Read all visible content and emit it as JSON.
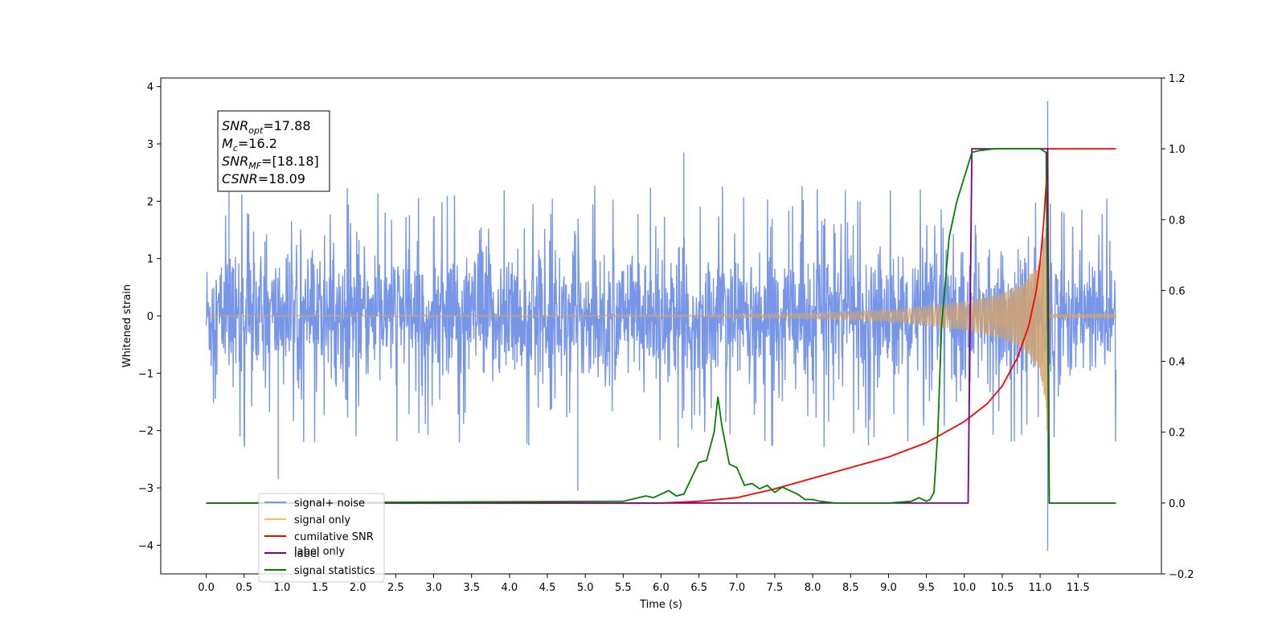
{
  "chart_data": {
    "type": "line",
    "xlabel": "Time (s)",
    "ylabel": "Whitened strain",
    "xlim": [
      -0.6,
      12.6
    ],
    "ylim": [
      -4.5,
      4.15
    ],
    "y2lim": [
      -0.2,
      1.2
    ],
    "x_ticks": [
      "0.0",
      "0.5",
      "1.0",
      "1.5",
      "2.0",
      "2.5",
      "3.0",
      "3.5",
      "4.0",
      "4.5",
      "5.0",
      "5.5",
      "6.0",
      "6.5",
      "7.0",
      "7.5",
      "8.0",
      "8.5",
      "9.0",
      "9.5",
      "10.0",
      "10.5",
      "11.0",
      "11.5"
    ],
    "y_ticks": [
      "−4",
      "−3",
      "−2",
      "−1",
      "0",
      "1",
      "2",
      "3",
      "4"
    ],
    "y2_ticks": [
      "−0.2",
      "0.0",
      "0.2",
      "0.4",
      "0.6",
      "0.8",
      "1.0",
      "1.2"
    ],
    "annotation": {
      "lines": [
        {
          "sym": "SNR",
          "sub": "opt",
          "value": "=17.88"
        },
        {
          "sym": "M",
          "sub": "c",
          "value": "=16.2"
        },
        {
          "sym": "SNR",
          "sub": "MF",
          "value": "=[18.18]"
        },
        {
          "sym": "CSNR",
          "sub": "",
          "value": "=18.09"
        }
      ]
    },
    "legend": {
      "position": "lower-left",
      "entries": [
        {
          "label": "signal+ noise",
          "color": "#7896e8"
        },
        {
          "label": "signal only",
          "color": "#ffc04d"
        },
        {
          "label": "cumilative SNR",
          "color": "#ff0000"
        },
        {
          "label": "label",
          "color": "#800080"
        },
        {
          "label": "signal statistics",
          "color": "#008000"
        }
      ],
      "hidden_behind": [
        "signal only",
        "label only"
      ]
    },
    "series": [
      {
        "name": "signal+ noise",
        "axis": "left",
        "color": "#7896e8",
        "x_range": [
          0.0,
          12.0
        ],
        "noise_envelope": [
          [
            0.0,
            1.5
          ],
          [
            11.1,
            1.5
          ],
          [
            11.11,
            3.75
          ],
          [
            11.12,
            1.5
          ],
          [
            12.0,
            1.5
          ]
        ],
        "notable_extrema": [
          [
            0.3,
            2.35
          ],
          [
            0.95,
            -2.85
          ],
          [
            6.3,
            2.85
          ],
          [
            4.9,
            -3.05
          ],
          [
            11.1,
            3.75
          ],
          [
            11.1,
            -4.1
          ]
        ]
      },
      {
        "name": "signal only",
        "axis": "left",
        "color": "#d2a46e",
        "x_range": [
          0.0,
          12.0
        ],
        "amplitude_envelope": [
          [
            0.0,
            0.01
          ],
          [
            6.5,
            0.02
          ],
          [
            8.0,
            0.05
          ],
          [
            9.0,
            0.1
          ],
          [
            10.0,
            0.25
          ],
          [
            10.5,
            0.4
          ],
          [
            10.8,
            0.6
          ],
          [
            11.0,
            1.0
          ],
          [
            11.08,
            1.6
          ],
          [
            11.1,
            2.4
          ],
          [
            11.12,
            0.03
          ],
          [
            12.0,
            0.03
          ]
        ]
      },
      {
        "name": "cumilative SNR",
        "axis": "right",
        "color": "#ff0000",
        "x": [
          0.0,
          6.0,
          6.5,
          7.0,
          7.5,
          8.0,
          8.5,
          9.0,
          9.5,
          10.0,
          10.3,
          10.5,
          10.7,
          10.85,
          10.95,
          11.0,
          11.05,
          11.08,
          11.1,
          12.0
        ],
        "values": [
          0.0,
          0.0,
          0.005,
          0.015,
          0.04,
          0.07,
          0.1,
          0.13,
          0.17,
          0.23,
          0.28,
          0.33,
          0.41,
          0.5,
          0.6,
          0.68,
          0.8,
          0.9,
          1.0,
          1.0
        ]
      },
      {
        "name": "label",
        "axis": "right",
        "color": "#800080",
        "x": [
          0.0,
          10.05,
          10.1,
          11.1,
          11.12,
          12.0
        ],
        "values": [
          0.0,
          0.0,
          1.0,
          1.0,
          0.0,
          0.0
        ]
      },
      {
        "name": "signal statistics",
        "axis": "right",
        "color": "#008000",
        "x": [
          0.0,
          5.5,
          5.6,
          5.7,
          5.8,
          5.9,
          6.0,
          6.1,
          6.2,
          6.3,
          6.4,
          6.5,
          6.6,
          6.7,
          6.75,
          6.8,
          6.9,
          7.0,
          7.1,
          7.2,
          7.3,
          7.4,
          7.5,
          7.6,
          7.7,
          7.8,
          7.9,
          8.0,
          8.1,
          8.3,
          9.0,
          9.3,
          9.4,
          9.5,
          9.55,
          9.6,
          9.65,
          9.7,
          9.8,
          9.9,
          10.0,
          10.1,
          10.2,
          10.4,
          11.0,
          11.08,
          11.12,
          12.0
        ],
        "values": [
          0.0,
          0.005,
          0.01,
          0.015,
          0.02,
          0.015,
          0.025,
          0.035,
          0.02,
          0.025,
          0.07,
          0.115,
          0.12,
          0.2,
          0.3,
          0.22,
          0.11,
          0.1,
          0.05,
          0.055,
          0.04,
          0.05,
          0.03,
          0.045,
          0.035,
          0.025,
          0.01,
          0.01,
          0.005,
          0.0,
          0.0,
          0.005,
          0.015,
          0.005,
          0.01,
          0.03,
          0.2,
          0.5,
          0.75,
          0.85,
          0.92,
          0.99,
          0.995,
          1.0,
          1.0,
          0.99,
          0.0,
          0.0
        ]
      }
    ]
  }
}
